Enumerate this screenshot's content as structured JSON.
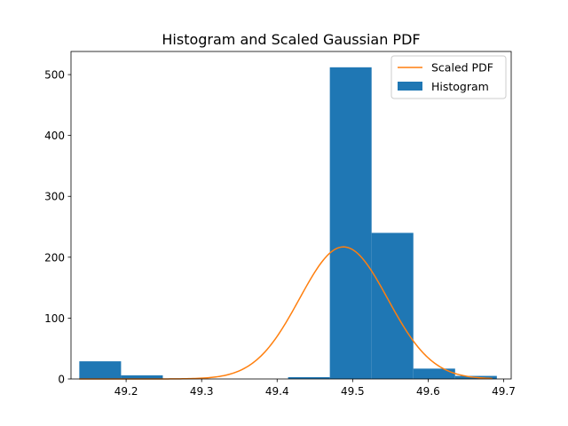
{
  "chart_data": {
    "type": "bar",
    "title": "Histogram and Scaled Gaussian PDF",
    "xlabel": "",
    "ylabel": "",
    "xlim": [
      49.127,
      49.71
    ],
    "ylim": [
      0,
      538
    ],
    "x_ticks": [
      "49.2",
      "49.3",
      "49.4",
      "49.5",
      "49.6",
      "49.7"
    ],
    "x_tick_values": [
      49.2,
      49.3,
      49.4,
      49.5,
      49.6,
      49.7
    ],
    "y_ticks": [
      "0",
      "100",
      "200",
      "300",
      "400",
      "500"
    ],
    "y_tick_values": [
      0,
      100,
      200,
      300,
      400,
      500
    ],
    "grid": false,
    "legend_position": "top-right",
    "histogram": {
      "name": "Histogram",
      "color": "#1f77b4",
      "bin_edges": [
        49.138,
        49.1933,
        49.2486,
        49.3039,
        49.3592,
        49.4145,
        49.4698,
        49.5251,
        49.5804,
        49.6357,
        49.691
      ],
      "counts": [
        29,
        6,
        0,
        0,
        0,
        3,
        512,
        240,
        17,
        5
      ]
    },
    "pdf_curve": {
      "name": "Scaled PDF",
      "color": "#ff7f0e",
      "mean": 49.488,
      "sigma": 0.0585,
      "peak": 217,
      "x_range": [
        49.138,
        49.685
      ]
    }
  }
}
